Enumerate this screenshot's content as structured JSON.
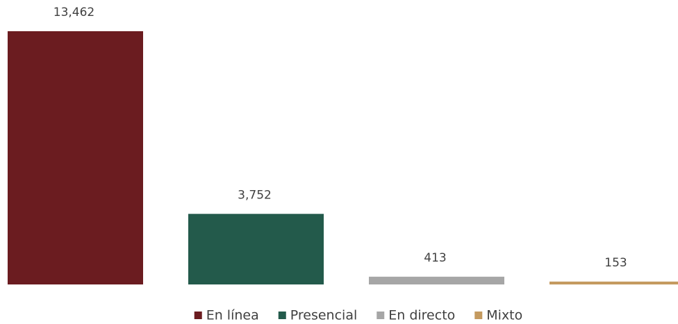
{
  "chart_data": {
    "type": "bar",
    "series": [
      {
        "name": "En línea",
        "color": "#6b1c20",
        "values": [
          13462
        ],
        "value_labels": [
          "13,462"
        ]
      },
      {
        "name": "Presencial",
        "color": "#235a4b",
        "values": [
          3752
        ],
        "value_labels": [
          "3,752"
        ]
      },
      {
        "name": "En directo",
        "color": "#a6a6a6",
        "values": [
          413
        ],
        "value_labels": [
          "413"
        ]
      },
      {
        "name": "Mixto",
        "color": "#c49a5f",
        "values": [
          153
        ],
        "value_labels": [
          "153"
        ]
      }
    ],
    "legend": "bottom"
  }
}
